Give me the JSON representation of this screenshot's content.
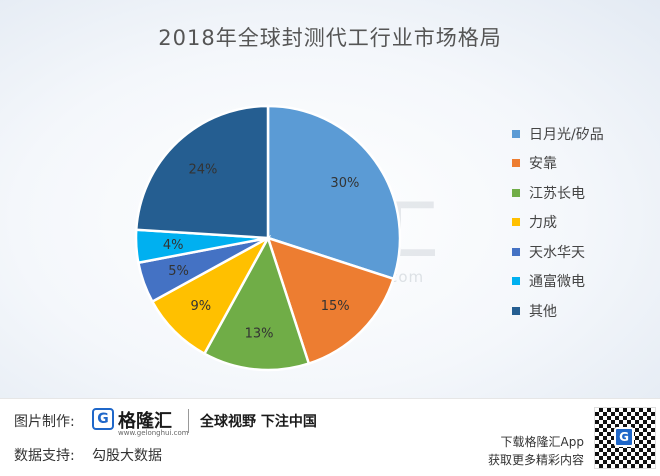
{
  "chart_data": {
    "type": "pie",
    "title": "2018年全球封测代工行业市场格局",
    "categories": [
      "日月光/矽品",
      "安靠",
      "江苏长电",
      "力成",
      "天水华天",
      "通富微电",
      "其他"
    ],
    "values": [
      30,
      15,
      13,
      9,
      5,
      4,
      24
    ],
    "value_labels": [
      "30%",
      "15%",
      "13%",
      "9%",
      "5%",
      "4%",
      "24%"
    ],
    "colors": [
      "#5b9bd5",
      "#ed7d31",
      "#70ad47",
      "#ffc000",
      "#4472c4",
      "#00b0f0",
      "#255e91"
    ],
    "legend_position": "right"
  },
  "watermark": {
    "text": "格隆汇",
    "url": "www.gelonghui.com"
  },
  "footer": {
    "image_credit_label": "图片制作:",
    "brand_icon": "G",
    "brand_name": "格隆汇",
    "brand_url": "www.gelonghui.com",
    "slogan": "全球视野 下注中国",
    "data_source_label": "数据支持:",
    "data_source": "勾股大数据",
    "cta_line1": "下载格隆汇App",
    "cta_line2": "获取更多精彩内容",
    "qr_logo": "G"
  }
}
